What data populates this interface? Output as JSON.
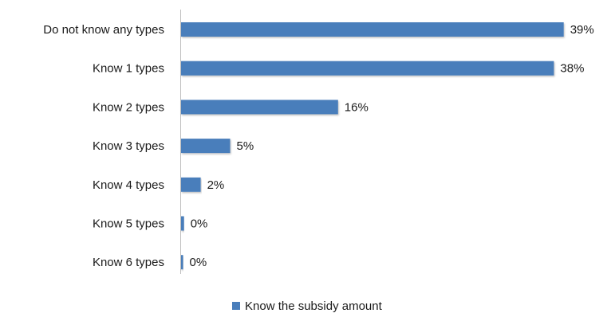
{
  "chart_data": {
    "type": "bar",
    "orientation": "horizontal",
    "categories": [
      "Do not know any types",
      "Know 1 types",
      "Know 2 types",
      "Know 3 types",
      "Know 4 types",
      "Know 5 types",
      "Know 6 types"
    ],
    "series": [
      {
        "name": "Know the subsidy amount",
        "values": [
          39,
          38,
          16,
          5,
          2,
          0.3,
          0.2
        ],
        "data_labels": [
          "39%",
          "38%",
          "16%",
          "5%",
          "2%",
          "0%",
          "0%"
        ],
        "color": "#4a7ebb"
      }
    ],
    "title": "",
    "xlabel": "",
    "ylabel": "",
    "xlim": [
      0,
      40
    ],
    "grid": false,
    "legend": "bottom"
  }
}
